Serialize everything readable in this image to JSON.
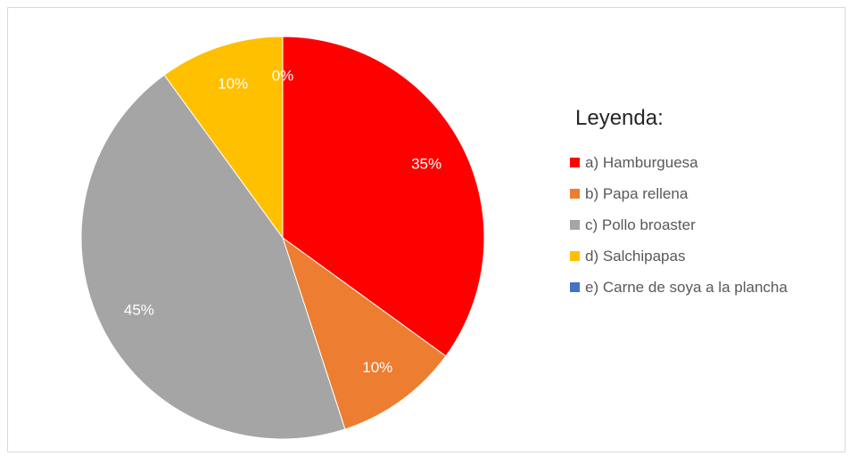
{
  "chart_data": {
    "type": "pie",
    "legend_title": "Leyenda:",
    "legend_position": "right",
    "slices": [
      {
        "label": "a)  Hamburguesa",
        "value": 35,
        "display": "35%",
        "color": "#ff0000"
      },
      {
        "label": "b)  Papa rellena",
        "value": 10,
        "display": "10%",
        "color": "#ed7d31"
      },
      {
        "label": "c)  Pollo broaster",
        "value": 45,
        "display": "45%",
        "color": "#a5a5a5"
      },
      {
        "label": "d)  Salchipapas",
        "value": 10,
        "display": "10%",
        "color": "#ffc000"
      },
      {
        "label": "e)  Carne de soya a la plancha",
        "value": 0,
        "display": "0%",
        "color": "#4472c4"
      }
    ]
  }
}
